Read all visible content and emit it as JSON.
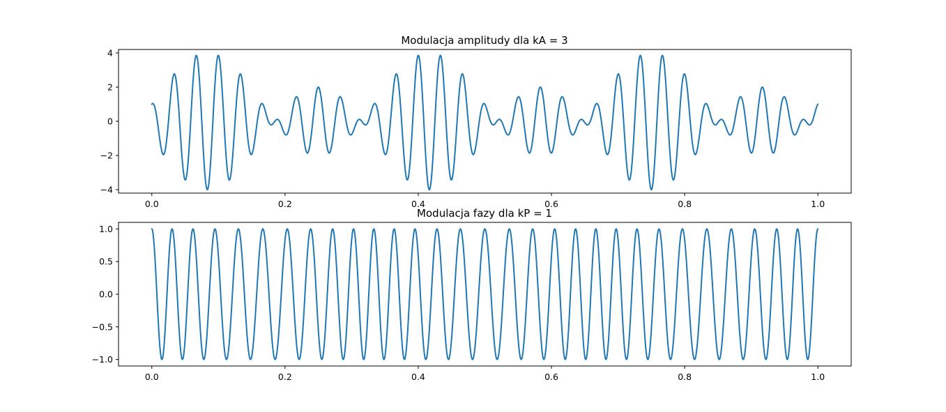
{
  "chart_data": [
    {
      "type": "line",
      "title": "Modulacja amplitudy dla kA = 3",
      "xlabel": "",
      "ylabel": "",
      "xlim": [
        -0.05,
        1.05
      ],
      "ylim": [
        -4.2,
        4.2
      ],
      "x_ticks": [
        "0.0",
        "0.2",
        "0.4",
        "0.6",
        "0.8",
        "1.0"
      ],
      "y_ticks": [
        "−4",
        "−2",
        "0",
        "2",
        "4"
      ],
      "grid": false,
      "series": [
        {
          "color": "#1f77b4",
          "formula": "(3*sin(2*pi*3*t) + 1) * cos(2*pi*30*t)",
          "x_range": [
            0,
            1
          ],
          "samples": 2000
        }
      ]
    },
    {
      "type": "line",
      "title": "Modulacja fazy dla kP = 1",
      "xlabel": "",
      "ylabel": "",
      "xlim": [
        -0.05,
        1.05
      ],
      "ylim": [
        -1.1,
        1.1
      ],
      "x_ticks": [
        "0.0",
        "0.2",
        "0.4",
        "0.6",
        "0.8",
        "1.0"
      ],
      "y_ticks": [
        "−1.0",
        "−0.5",
        "0.0",
        "0.5",
        "1.0"
      ],
      "grid": false,
      "series": [
        {
          "color": "#1f77b4",
          "formula": "cos(2*pi*30*t + 1*sin(2*pi*3*t))",
          "x_range": [
            0,
            1
          ],
          "samples": 2000
        }
      ]
    }
  ]
}
